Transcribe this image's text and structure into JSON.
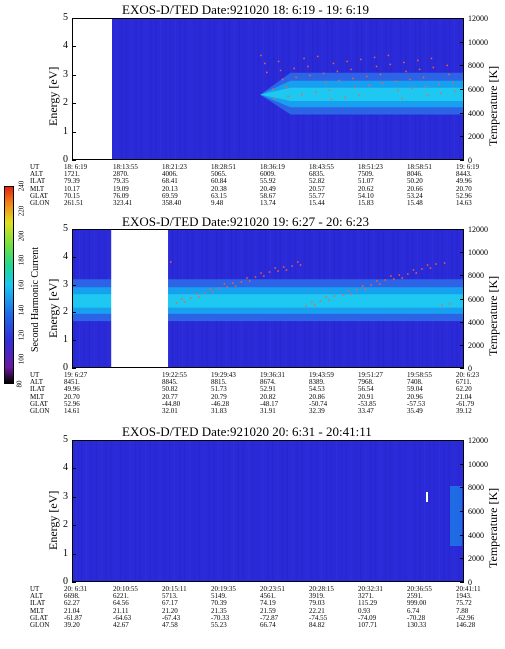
{
  "chart_data": [
    {
      "type": "heatmap",
      "title": "EXOS-D/TED   Date:921020  18: 6:19 - 19: 6:19",
      "ylabel": "Energy [eV]",
      "y2label": "Temperature [K]",
      "ylim": [
        0,
        5
      ],
      "y2lim": [
        0,
        12000
      ],
      "yticks": [
        "0",
        "1",
        "2",
        "3",
        "4",
        "5"
      ],
      "y2ticks": [
        "0",
        "2000",
        "4000",
        "6000",
        "8000",
        "10000",
        "12000"
      ],
      "band_center_ev": 2.3,
      "gaps": [
        [
          0.0,
          0.1
        ]
      ],
      "table": {
        "row_labels": [
          "UT",
          "ALT",
          "ILAT",
          "MLT",
          "GLAT",
          "GLON"
        ],
        "columns": [
          [
            "18: 6:19",
            "1721.",
            "79.39",
            "10.17",
            "70.15",
            "261.51"
          ],
          [
            "18:13:55",
            "2870.",
            "79.35",
            "19.09",
            "76.09",
            "323.41"
          ],
          [
            "18:21:23",
            "4006.",
            "68.41",
            "20.13",
            "69.59",
            "358.40"
          ],
          [
            "18:28:51",
            "5065.",
            "60.84",
            "20.38",
            "63.15",
            "9.48"
          ],
          [
            "18:36:19",
            "6009.",
            "55.92",
            "20.49",
            "58.67",
            "13.74"
          ],
          [
            "18:43:55",
            "6835.",
            "52.82",
            "20.57",
            "55.77",
            "15.44"
          ],
          [
            "18:51:23",
            "7509.",
            "51.07",
            "20.62",
            "54.10",
            "15.83"
          ],
          [
            "18:58:51",
            "8046.",
            "50.20",
            "20.66",
            "53.24",
            "15.48"
          ],
          [
            "19: 6:19",
            "8443.",
            "49.96",
            "20.70",
            "52.96",
            "14.63"
          ]
        ]
      }
    },
    {
      "type": "heatmap",
      "title": "EXOS-D/TED   Date:921020  19: 6:27 - 20: 6:23",
      "ylabel": "Energy [eV]",
      "y2label": "Temperature [K]",
      "ylim": [
        0,
        5
      ],
      "y2lim": [
        0,
        12000
      ],
      "yticks": [
        "0",
        "1",
        "2",
        "3",
        "4",
        "5"
      ],
      "y2ticks": [
        "0",
        "2000",
        "4000",
        "6000",
        "8000",
        "10000",
        "12000"
      ],
      "band_center_ev": 2.4,
      "gaps": [
        [
          0.1,
          0.245
        ]
      ],
      "colorbar": {
        "label": "Second Harmonic Current",
        "ticks": [
          "80",
          "100",
          "120",
          "140",
          "160",
          "180",
          "200",
          "220",
          "240"
        ]
      },
      "table": {
        "row_labels": [
          "UT",
          "ALT",
          "ILAT",
          "MLT",
          "GLAT",
          "GLON"
        ],
        "columns": [
          [
            "19: 6:27",
            "8451.",
            "49.96",
            "20.70",
            "52.96",
            "14.61"
          ],
          [
            "",
            "",
            "",
            "",
            "",
            ""
          ],
          [
            "19:22:55",
            "8845.",
            "50.82",
            "20.77",
            "-44.80",
            "32.01"
          ],
          [
            "19:29:43",
            "8815.",
            "51.73",
            "20.79",
            "-46.28",
            "31.83"
          ],
          [
            "19:36:31",
            "8674.",
            "52.91",
            "20.82",
            "-48.17",
            "31.91"
          ],
          [
            "19:43:59",
            "8389.",
            "54.53",
            "20.86",
            "-50.74",
            "32.39"
          ],
          [
            "19:51:27",
            "7968.",
            "56.54",
            "20.91",
            "-53.85",
            "33.47"
          ],
          [
            "19:58:55",
            "7408.",
            "59.04",
            "20.96",
            "-57.53",
            "35.49"
          ],
          [
            "20: 6:23",
            "6711.",
            "62.20",
            "21.04",
            "-61.79",
            "39.12"
          ]
        ]
      }
    },
    {
      "type": "heatmap",
      "title": "EXOS-D/TED   Date:921020  20: 6:31 - 20:41:11",
      "ylabel": "Energy [eV]",
      "y2label": "Temperature [K]",
      "ylim": [
        0,
        5
      ],
      "y2lim": [
        0,
        12000
      ],
      "yticks": [
        "0",
        "1",
        "2",
        "3",
        "4",
        "5"
      ],
      "y2ticks": [
        "0",
        "2000",
        "4000",
        "6000",
        "8000",
        "10000",
        "12000"
      ],
      "band_center_ev": null,
      "gaps": [],
      "table": {
        "row_labels": [
          "UT",
          "ALT",
          "ILAT",
          "MLT",
          "GLAT",
          "GLON"
        ],
        "columns": [
          [
            "20: 6:31",
            "6698.",
            "62.27",
            "21.04",
            "-61.87",
            "39.20"
          ],
          [
            "20:10:55",
            "6221.",
            "64.56",
            "21.11",
            "-64.63",
            "42.67"
          ],
          [
            "20:15:11",
            "5713.",
            "67.17",
            "21.20",
            "-67.43",
            "47.58"
          ],
          [
            "20:19:35",
            "5149.",
            "70.39",
            "21.35",
            "-70.33",
            "55.23"
          ],
          [
            "20:23:51",
            "4561.",
            "74.19",
            "21.59",
            "-72.87",
            "66.74"
          ],
          [
            "20:28:15",
            "3919.",
            "79.03",
            "22.21",
            "-74.55",
            "84.82"
          ],
          [
            "20:32:31",
            "3271.",
            "115.29",
            "0.93",
            "-74.09",
            "107.71"
          ],
          [
            "20:36:55",
            "2591.",
            "999.00",
            "6.74",
            "-70.28",
            "130.33"
          ],
          [
            "20:41:11",
            "1943.",
            "75.72",
            "7.88",
            "-62.96",
            "146.28"
          ]
        ]
      }
    }
  ],
  "colors": {
    "background_low": "#2a2ad8",
    "band_core": "#1ec8f0",
    "band_mid": "#18a0f0",
    "band_edge": "#2e6ae8",
    "speckle": "#ff6030"
  }
}
